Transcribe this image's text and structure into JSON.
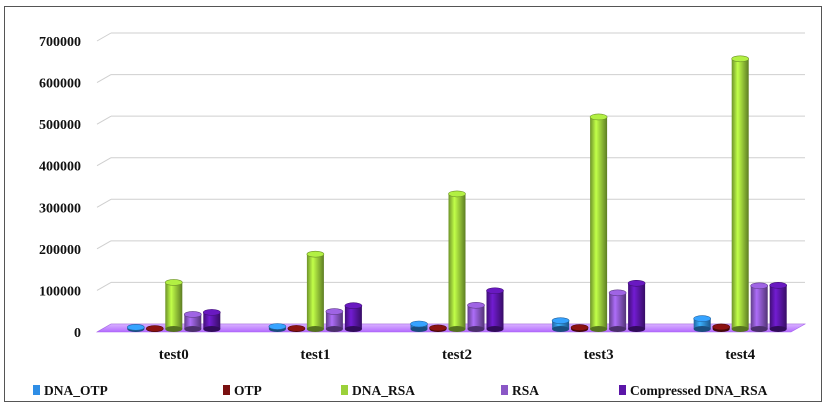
{
  "chart_data": {
    "type": "bar",
    "title": "",
    "xlabel": "",
    "ylabel": "",
    "ylim": [
      0,
      700000
    ],
    "yticks": [
      0,
      100000,
      200000,
      300000,
      400000,
      500000,
      600000,
      700000
    ],
    "ytick_labels": [
      "0",
      "100000",
      "200000",
      "300000",
      "400000",
      "500000",
      "600000",
      "700000"
    ],
    "grid": true,
    "legend_position": "bottom",
    "categories": [
      "test0",
      "test1",
      "test2",
      "test3",
      "test4"
    ],
    "series": [
      {
        "name": "DNA_OTP",
        "color": "#2f8ee6",
        "values": [
          4000,
          6000,
          12000,
          20000,
          25000
        ]
      },
      {
        "name": "OTP",
        "color": "#7a1010",
        "values": [
          1000,
          1500,
          2500,
          3500,
          5000
        ]
      },
      {
        "name": "DNA_RSA",
        "color": "#9bd13a",
        "values": [
          112000,
          180000,
          325000,
          510000,
          650000
        ]
      },
      {
        "name": "RSA",
        "color": "#8a57c6",
        "values": [
          35000,
          42000,
          57000,
          87000,
          104000
        ]
      },
      {
        "name": "Compressed DNA_RSA",
        "color": "#5b16a8",
        "values": [
          40000,
          56000,
          92000,
          110000,
          105000
        ]
      }
    ]
  }
}
